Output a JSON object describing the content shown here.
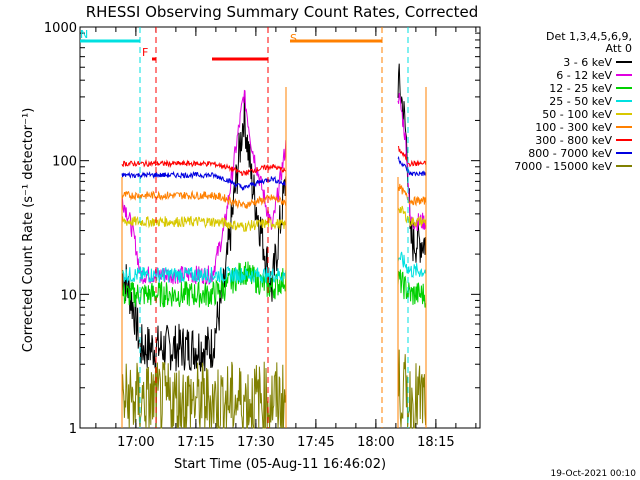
{
  "chart_data": {
    "type": "line",
    "title": "RHESSI Observing Summary Count Rates, Corrected",
    "ylabel": "Corrected Count Rate (s⁻¹ detector⁻¹)",
    "xlabel": "Start Time (05-Aug-11 16:46:02)",
    "footer": "19-Oct-2021 00:10",
    "y_scale": "log",
    "ylim": [
      1,
      1000
    ],
    "xlim_minutes_from_start": [
      0,
      100
    ],
    "y_ticks": [
      {
        "value": 1,
        "label": "1"
      },
      {
        "value": 10,
        "label": "10"
      },
      {
        "value": 100,
        "label": "100"
      },
      {
        "value": 1000,
        "label": "1000"
      }
    ],
    "x_ticks": [
      {
        "time": "17:00",
        "minutes": 13.97
      },
      {
        "time": "17:15",
        "minutes": 28.97
      },
      {
        "time": "17:30",
        "minutes": 43.97
      },
      {
        "time": "17:45",
        "minutes": 58.97
      },
      {
        "time": "18:00",
        "minutes": 73.97
      },
      {
        "time": "18:15",
        "minutes": 88.97
      }
    ],
    "legend_header": [
      "Det 1,3,4,5,6,9,",
      "Att 0"
    ],
    "legend_position": "right",
    "series": [
      {
        "name": "3 - 6 keV",
        "color": "#000000",
        "base": 4,
        "bump": 230,
        "tail": 25,
        "noise": 0.18
      },
      {
        "name": "6 - 12 keV",
        "color": "#e000e0",
        "base": 14,
        "bump": 320,
        "tail": 35,
        "noise": 0.07
      },
      {
        "name": "12 - 25 keV",
        "color": "#00d000",
        "base": 10,
        "bump": 15,
        "tail": 10,
        "noise": 0.1
      },
      {
        "name": "25 - 50 keV",
        "color": "#00e0e0",
        "base": 14,
        "bump": 14,
        "tail": 15,
        "noise": 0.06
      },
      {
        "name": "50 - 100 keV",
        "color": "#d8c800",
        "base": 35,
        "bump": 32,
        "tail": 35,
        "noise": 0.04
      },
      {
        "name": "100 - 300 keV",
        "color": "#ff8000",
        "base": 55,
        "bump": 46,
        "tail": 50,
        "noise": 0.03
      },
      {
        "name": "300 - 800 keV",
        "color": "#ff0000",
        "base": 95,
        "bump": 80,
        "tail": 95,
        "noise": 0.02
      },
      {
        "name": "800 - 7000 keV",
        "color": "#0000e0",
        "base": 78,
        "bump": 62,
        "tail": 80,
        "noise": 0.02
      },
      {
        "name": "7000 - 15000 keV",
        "color": "#808000",
        "base": 1.6,
        "bump": 1.6,
        "tail": 1.6,
        "noise": 0.3
      }
    ],
    "flags": [
      {
        "label": "F",
        "color": "#ff0000",
        "start_min": 18.0,
        "end_min": 19.0
      },
      {
        "label": "",
        "color": "#ff0000",
        "start_min": 33.0,
        "end_min": 47.0
      },
      {
        "label": "N",
        "color": "#00e0e0",
        "start_min": 0.0,
        "end_min": 15.0
      },
      {
        "label": "",
        "color": "#00e0e0",
        "start_min": 82.0,
        "end_min": 82.0
      },
      {
        "label": "S",
        "color": "#ff8000",
        "start_min": 52.5,
        "end_min": 75.5
      }
    ],
    "data_segments": [
      {
        "start_min": 10.5,
        "end_min": 51.5
      },
      {
        "start_min": 79.5,
        "end_min": 86.5
      }
    ]
  }
}
